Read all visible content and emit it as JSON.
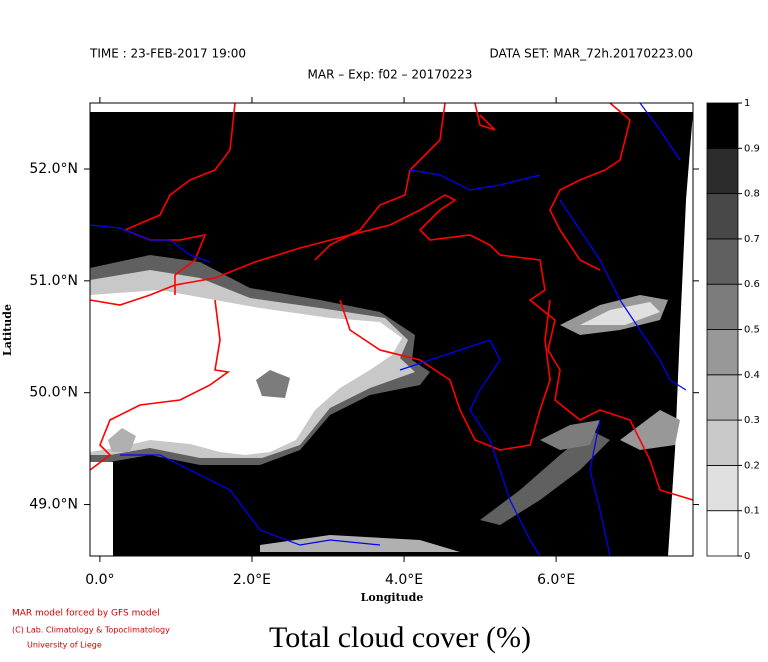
{
  "chart_data": {
    "type": "contour-map",
    "time": "TIME : 23-FEB-2017 19:00",
    "data_set": "DATA SET: MAR_72h.20170223.00",
    "title": "MAR – Exp: f02 – 20170223",
    "xlabel": "Longitude",
    "ylabel": "Latitude",
    "xlim": [
      -0.13,
      7.8
    ],
    "ylim": [
      48.54,
      52.59
    ],
    "xticks": [
      {
        "value": 0,
        "label": "0.0°"
      },
      {
        "value": 2,
        "label": "2.0°E"
      },
      {
        "value": 4,
        "label": "4.0°E"
      },
      {
        "value": 6,
        "label": "6.0°E"
      }
    ],
    "yticks": [
      {
        "value": 49,
        "label": "49.0°N"
      },
      {
        "value": 50,
        "label": "50.0°N"
      },
      {
        "value": 51,
        "label": "51.0°N"
      },
      {
        "value": 52,
        "label": "52.0°N"
      }
    ],
    "colorbar": {
      "ticks": [
        0,
        0.1,
        0.2,
        0.3,
        0.4,
        0.5,
        0.6,
        0.7,
        0.8,
        0.9,
        1
      ],
      "colors": [
        "#ffffff",
        "#e0e0e0",
        "#c8c8c8",
        "#b0b0b0",
        "#989898",
        "#7c7c7c",
        "#606060",
        "#484848",
        "#2c2c2c",
        "#000000"
      ]
    },
    "credits": [
      "MAR model forced by GFS model",
      "(C) Lab. Climatology & Topoclimatology",
      "University of Liege"
    ],
    "caption": "Total cloud cover (%)"
  }
}
